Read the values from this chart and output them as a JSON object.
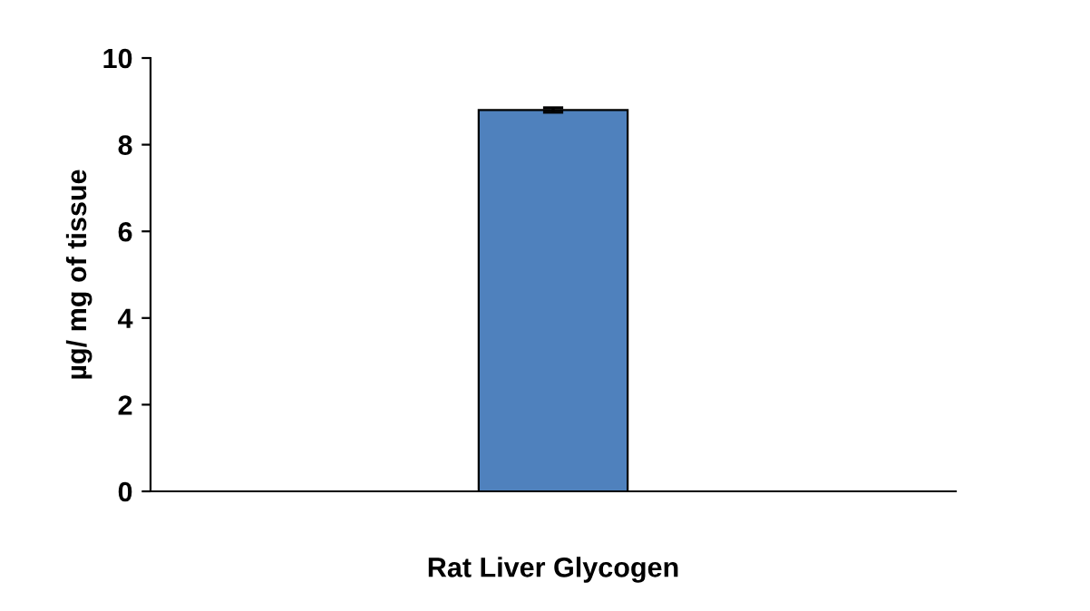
{
  "chart_data": {
    "type": "bar",
    "ylabel": "µg/ mg of tissue",
    "categories": [
      "Rat Liver Glycogen"
    ],
    "values": [
      8.8
    ],
    "errors": [
      0.05
    ],
    "color": "#4f81bd",
    "ylim": [
      0,
      10
    ],
    "yticks": [
      0,
      2,
      4,
      6,
      8,
      10
    ],
    "grid": false,
    "legend": false
  }
}
